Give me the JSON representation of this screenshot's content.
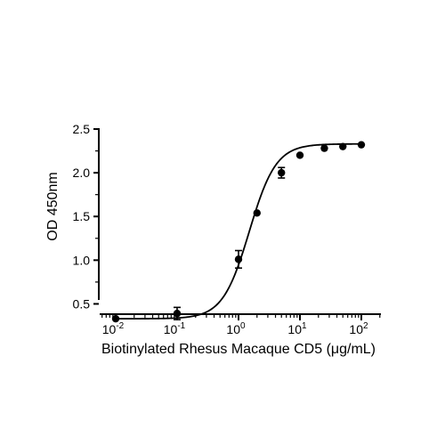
{
  "chart_data": {
    "type": "scatter",
    "xlabel": "Biotinylated Rhesus Macaque CD5 (μg/mL)",
    "ylabel": "OD 450nm",
    "x_scale": "log",
    "xlim": [
      0.01,
      100
    ],
    "ylim": [
      0.25,
      2.5
    ],
    "x_ticks": [
      {
        "value": 0.01,
        "base": "10",
        "exp": "-2"
      },
      {
        "value": 0.1,
        "base": "10",
        "exp": "-1"
      },
      {
        "value": 1,
        "base": "10",
        "exp": "0"
      },
      {
        "value": 10,
        "base": "10",
        "exp": "1"
      },
      {
        "value": 100,
        "base": "10",
        "exp": "2"
      }
    ],
    "y_ticks": [
      "0.5",
      "1.0",
      "1.5",
      "2.0",
      "2.5"
    ],
    "grid": false,
    "series": [
      {
        "points": [
          {
            "x": 0.01,
            "y": 0.33,
            "err": 0.0
          },
          {
            "x": 0.1,
            "y": 0.39,
            "err": 0.07
          },
          {
            "x": 1.0,
            "y": 1.01,
            "err": 0.1
          },
          {
            "x": 2.0,
            "y": 1.54,
            "err": 0.0
          },
          {
            "x": 5.0,
            "y": 2.0,
            "err": 0.06
          },
          {
            "x": 10.0,
            "y": 2.2,
            "err": 0.0
          },
          {
            "x": 25.0,
            "y": 2.28,
            "err": 0.0
          },
          {
            "x": 50.0,
            "y": 2.3,
            "err": 0.0
          },
          {
            "x": 100.0,
            "y": 2.32,
            "err": 0.0
          }
        ],
        "fit": {
          "model": "4PL",
          "bottom": 0.33,
          "top": 2.33,
          "ec50": 1.5,
          "hill": 2.0
        }
      }
    ],
    "colors": {
      "line": "#000000",
      "marker": "#000000"
    }
  }
}
